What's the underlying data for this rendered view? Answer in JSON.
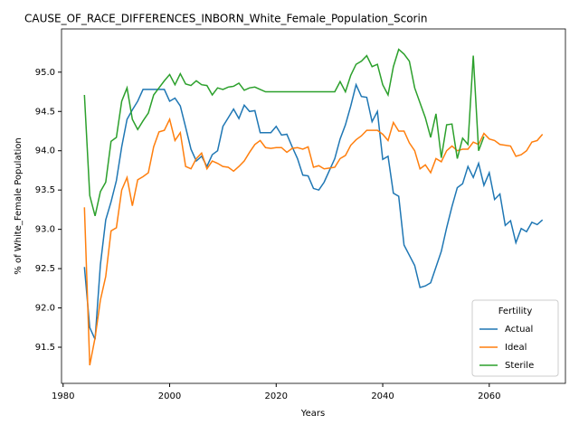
{
  "chart_data": {
    "type": "line",
    "title": "CAUSE_OF_RACE_DIFFERENCES_INBORN_White_Female_Population_Scorin",
    "x_label": "Years",
    "y_label": "% of White_Female Population",
    "legend_title": "Fertility",
    "legend_position": "lower right",
    "x": [
      1984,
      1985,
      1986,
      1987,
      1988,
      1989,
      1990,
      1991,
      1992,
      1993,
      1994,
      1995,
      1996,
      1997,
      1998,
      1999,
      2000,
      2001,
      2002,
      2003,
      2004,
      2005,
      2006,
      2007,
      2008,
      2009,
      2010,
      2011,
      2012,
      2013,
      2014,
      2015,
      2016,
      2017,
      2018,
      2019,
      2020,
      2021,
      2022,
      2023,
      2024,
      2025,
      2026,
      2027,
      2028,
      2029,
      2030,
      2031,
      2032,
      2033,
      2034,
      2035,
      2036,
      2037,
      2038,
      2039,
      2040,
      2041,
      2042,
      2043,
      2044,
      2045,
      2046,
      2047,
      2048,
      2049,
      2050,
      2051,
      2052,
      2053,
      2054,
      2055,
      2056,
      2057,
      2058,
      2059,
      2060,
      2061,
      2062,
      2063,
      2064,
      2065,
      2066,
      2067,
      2068,
      2069,
      2070
    ],
    "series": [
      {
        "name": "Actual",
        "color": "#1f77b4",
        "values": [
          92.52,
          91.75,
          91.6,
          92.55,
          93.12,
          93.35,
          93.62,
          94.05,
          94.4,
          94.52,
          94.63,
          94.78,
          94.78,
          94.78,
          94.78,
          94.78,
          94.63,
          94.67,
          94.57,
          94.3,
          94.02,
          93.87,
          93.93,
          93.8,
          93.95,
          94.0,
          94.31,
          94.42,
          94.53,
          94.41,
          94.58,
          94.5,
          94.51,
          94.23,
          94.23,
          94.23,
          94.31,
          94.2,
          94.21,
          94.05,
          93.9,
          93.69,
          93.68,
          93.52,
          93.5,
          93.6,
          93.75,
          93.9,
          94.15,
          94.33,
          94.57,
          94.84,
          94.69,
          94.68,
          94.37,
          94.5,
          93.89,
          93.93,
          93.46,
          93.42,
          92.8,
          92.67,
          92.54,
          92.26,
          92.28,
          92.32,
          92.52,
          92.72,
          93.02,
          93.29,
          93.53,
          93.58,
          93.8,
          93.66,
          93.84,
          93.56,
          93.72,
          93.38,
          93.45,
          93.05,
          93.11,
          92.83,
          93.01,
          92.97,
          93.09,
          93.06,
          93.12
        ]
      },
      {
        "name": "Ideal",
        "color": "#ff7f0e",
        "values": [
          93.28,
          91.27,
          91.62,
          92.1,
          92.4,
          92.98,
          93.02,
          93.5,
          93.66,
          93.3,
          93.63,
          93.67,
          93.72,
          94.05,
          94.24,
          94.26,
          94.4,
          94.13,
          94.23,
          93.8,
          93.77,
          93.9,
          93.97,
          93.77,
          93.87,
          93.84,
          93.8,
          93.79,
          93.74,
          93.8,
          93.87,
          93.98,
          94.08,
          94.13,
          94.04,
          94.03,
          94.04,
          94.04,
          93.98,
          94.03,
          94.04,
          94.02,
          94.05,
          93.79,
          93.81,
          93.77,
          93.78,
          93.79,
          93.9,
          93.94,
          94.07,
          94.14,
          94.19,
          94.26,
          94.26,
          94.26,
          94.21,
          94.13,
          94.36,
          94.25,
          94.25,
          94.1,
          94.0,
          93.77,
          93.82,
          93.72,
          93.9,
          93.86,
          94.0,
          94.06,
          94.0,
          94.02,
          94.02,
          94.11,
          94.08,
          94.22,
          94.15,
          94.13,
          94.08,
          94.07,
          94.06,
          93.93,
          93.95,
          94.0,
          94.11,
          94.13,
          94.21
        ]
      },
      {
        "name": "Sterile",
        "color": "#2ca02c",
        "values": [
          94.71,
          93.43,
          93.17,
          93.48,
          93.6,
          94.12,
          94.17,
          94.63,
          94.8,
          94.4,
          94.27,
          94.38,
          94.48,
          94.71,
          94.8,
          94.89,
          94.97,
          94.84,
          94.98,
          94.85,
          94.83,
          94.89,
          94.84,
          94.83,
          94.71,
          94.8,
          94.78,
          94.81,
          94.82,
          94.86,
          94.77,
          94.8,
          94.81,
          94.78,
          94.75,
          94.75,
          94.75,
          94.75,
          94.75,
          94.75,
          94.75,
          94.75,
          94.75,
          94.75,
          94.75,
          94.75,
          94.75,
          94.75,
          94.88,
          94.75,
          94.96,
          95.1,
          95.14,
          95.21,
          95.07,
          95.1,
          94.84,
          94.71,
          95.07,
          95.29,
          95.23,
          95.14,
          94.8,
          94.61,
          94.42,
          94.17,
          94.47,
          93.91,
          94.33,
          94.34,
          93.9,
          94.16,
          94.08,
          95.21,
          94.0,
          94.18,
          null,
          null,
          null,
          null,
          null,
          null,
          null,
          null,
          null,
          null,
          null
        ]
      }
    ],
    "xlim": [
      1979.7,
      2074.3
    ],
    "xticks": [
      1980,
      2000,
      2020,
      2040,
      2060
    ],
    "ylim": [
      91.04,
      95.55
    ],
    "yticks": [
      91.5,
      {
        "value": 92,
        "label": "92.0"
      },
      92.5,
      {
        "value": 93,
        "label": "93.0"
      },
      93.5,
      {
        "value": 94,
        "label": "94.0"
      },
      94.5,
      {
        "value": 95,
        "label": "95.0"
      }
    ],
    "grid": false
  }
}
